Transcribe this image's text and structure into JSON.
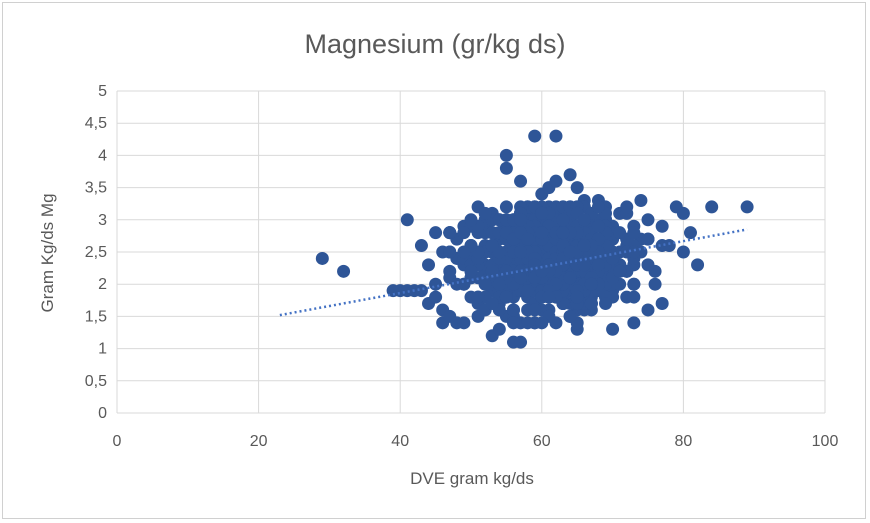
{
  "chart_data": {
    "type": "scatter",
    "title": "Magnesium (gr/kg ds)",
    "xlabel": "DVE gram kg/ds",
    "ylabel": "Gram Kg/ds Mg",
    "xlim": [
      0,
      100
    ],
    "ylim": [
      0,
      5
    ],
    "x_ticks": [
      "0",
      "20",
      "40",
      "60",
      "80",
      "100"
    ],
    "y_ticks": [
      "0",
      "0,5",
      "1",
      "1,5",
      "2",
      "2,5",
      "3",
      "3,5",
      "4",
      "4,5",
      "5"
    ],
    "grid": true,
    "legend": "none",
    "marker_color": "#2E5597",
    "trendline": {
      "type": "linear",
      "style": "dotted",
      "color": "#4472C4",
      "x": [
        23,
        89
      ],
      "y": [
        1.52,
        2.85
      ]
    },
    "series": [
      {
        "points": [
          [
            29,
            2.4
          ],
          [
            32,
            2.2
          ],
          [
            39,
            1.9
          ],
          [
            40,
            1.9
          ],
          [
            41,
            1.9
          ],
          [
            42,
            1.9
          ],
          [
            43,
            1.9
          ],
          [
            41,
            3.0
          ],
          [
            43,
            2.6
          ],
          [
            44,
            2.3
          ],
          [
            44,
            1.7
          ],
          [
            45,
            2.8
          ],
          [
            45,
            2.0
          ],
          [
            45,
            1.8
          ],
          [
            46,
            2.5
          ],
          [
            46,
            1.4
          ],
          [
            46,
            1.6
          ],
          [
            47,
            2.2
          ],
          [
            47,
            1.5
          ],
          [
            48,
            2.7
          ],
          [
            48,
            2.4
          ],
          [
            48,
            1.4
          ],
          [
            49,
            2.9
          ],
          [
            49,
            2.0
          ],
          [
            50,
            2.6
          ],
          [
            50,
            1.8
          ],
          [
            51,
            3.2
          ],
          [
            51,
            2.8
          ],
          [
            51,
            1.5
          ],
          [
            52,
            3.0
          ],
          [
            52,
            2.2
          ],
          [
            53,
            2.6
          ],
          [
            53,
            1.2
          ],
          [
            53,
            3.1
          ],
          [
            54,
            1.3
          ],
          [
            55,
            4.0
          ],
          [
            55,
            3.8
          ],
          [
            55,
            2.7
          ],
          [
            55,
            1.5
          ],
          [
            56,
            1.1
          ],
          [
            57,
            1.1
          ],
          [
            57,
            3.6
          ],
          [
            57,
            1.4
          ],
          [
            58,
            3.2
          ],
          [
            58,
            1.8
          ],
          [
            59,
            4.3
          ],
          [
            59,
            2.0
          ],
          [
            60,
            1.6
          ],
          [
            60,
            3.4
          ],
          [
            61,
            3.5
          ],
          [
            61,
            2.9
          ],
          [
            62,
            4.3
          ],
          [
            62,
            3.6
          ],
          [
            62,
            1.4
          ],
          [
            63,
            3.2
          ],
          [
            63,
            1.7
          ],
          [
            64,
            3.7
          ],
          [
            64,
            1.5
          ],
          [
            65,
            3.5
          ],
          [
            65,
            1.3
          ],
          [
            65,
            1.4
          ],
          [
            66,
            3.3
          ],
          [
            66,
            2.0
          ],
          [
            67,
            3.0
          ],
          [
            67,
            1.6
          ],
          [
            68,
            3.3
          ],
          [
            68,
            2.2
          ],
          [
            69,
            3.2
          ],
          [
            69,
            1.9
          ],
          [
            70,
            1.3
          ],
          [
            70,
            2.7
          ],
          [
            71,
            3.1
          ],
          [
            71,
            2.3
          ],
          [
            72,
            2.6
          ],
          [
            72,
            1.8
          ],
          [
            73,
            2.0
          ],
          [
            73,
            2.9
          ],
          [
            74,
            3.3
          ],
          [
            74,
            2.5
          ],
          [
            75,
            2.7
          ],
          [
            75,
            3.0
          ],
          [
            76,
            2.2
          ],
          [
            76,
            2.0
          ],
          [
            77,
            2.9
          ],
          [
            77,
            1.7
          ],
          [
            77,
            2.6
          ],
          [
            78,
            2.6
          ],
          [
            79,
            3.2
          ],
          [
            80,
            2.5
          ],
          [
            80,
            3.1
          ],
          [
            81,
            2.8
          ],
          [
            82,
            2.3
          ],
          [
            84,
            3.2
          ],
          [
            89,
            3.2
          ],
          [
            52,
            2.0
          ],
          [
            54,
            2.4
          ],
          [
            56,
            2.1
          ],
          [
            57,
            2.5
          ],
          [
            58,
            2.3
          ],
          [
            59,
            2.7
          ],
          [
            60,
            2.2
          ],
          [
            61,
            2.5
          ],
          [
            62,
            2.4
          ],
          [
            63,
            2.6
          ],
          [
            64,
            2.2
          ],
          [
            65,
            2.5
          ],
          [
            66,
            2.4
          ],
          [
            67,
            2.6
          ],
          [
            68,
            2.5
          ],
          [
            69,
            2.3
          ],
          [
            56,
            2.7
          ],
          [
            58,
            2.9
          ],
          [
            60,
            2.6
          ],
          [
            62,
            2.8
          ],
          [
            64,
            2.9
          ],
          [
            66,
            2.8
          ],
          [
            55,
            2.3
          ],
          [
            59,
            2.4
          ],
          [
            63,
            2.3
          ],
          [
            67,
            2.2
          ],
          [
            71,
            2.5
          ],
          [
            53,
            2.5
          ],
          [
            57,
            1.9
          ],
          [
            61,
            1.9
          ],
          [
            65,
            2.0
          ],
          [
            50,
            2.3
          ]
        ]
      }
    ]
  }
}
